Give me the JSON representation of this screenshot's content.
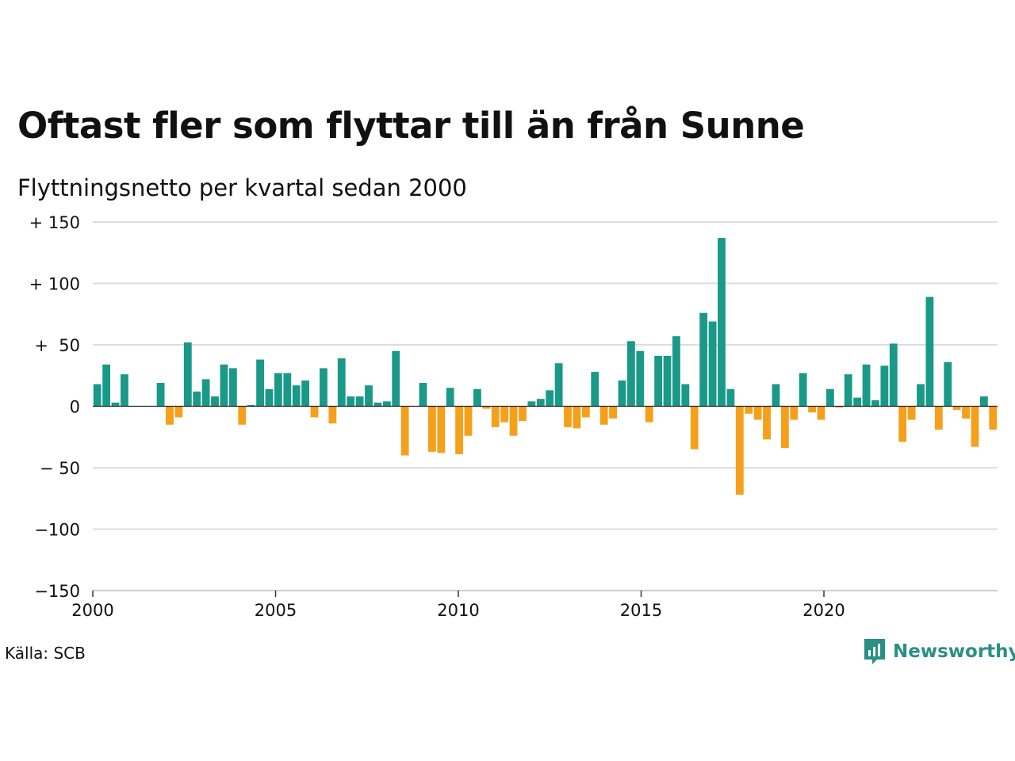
{
  "colors": {
    "positive": "#1a9988",
    "negative": "#f5a01a",
    "grid": "#dddddd",
    "logo": "#2a8f85"
  },
  "source": "Källa: SCB",
  "logo": {
    "text": "Newsworthy",
    "icon": "chart-bubble-icon"
  },
  "chart_data": {
    "type": "bar",
    "title": "Oftast fler som flyttar till än från Sunne",
    "subtitle": "Flyttningsnetto per kvartal sedan 2000",
    "xlabel": "",
    "ylabel": "",
    "ylim": [
      -150,
      150
    ],
    "xlim": [
      2000,
      2024.75
    ],
    "grid": true,
    "legend": "none",
    "y_ticks": [
      {
        "value": 150,
        "label": "+ 150"
      },
      {
        "value": 100,
        "label": "+ 100"
      },
      {
        "value": 50,
        "label": "+  50"
      },
      {
        "value": 0,
        "label": "0"
      },
      {
        "value": -50,
        "label": "− 50"
      },
      {
        "value": -100,
        "label": "−100"
      },
      {
        "value": -150,
        "label": "−150"
      }
    ],
    "x_ticks": [
      {
        "value": 2000,
        "label": "2000"
      },
      {
        "value": 2005,
        "label": "2005"
      },
      {
        "value": 2010,
        "label": "2010"
      },
      {
        "value": 2015,
        "label": "2015"
      },
      {
        "value": 2020,
        "label": "2020"
      }
    ],
    "categories": [
      "2000K1",
      "2000K2",
      "2000K3",
      "2000K4",
      "2001K1",
      "2001K2",
      "2001K3",
      "2001K4",
      "2002K1",
      "2002K2",
      "2002K3",
      "2002K4",
      "2003K1",
      "2003K2",
      "2003K3",
      "2003K4",
      "2004K1",
      "2004K2",
      "2004K3",
      "2004K4",
      "2005K1",
      "2005K2",
      "2005K3",
      "2005K4",
      "2006K1",
      "2006K2",
      "2006K3",
      "2006K4",
      "2007K1",
      "2007K2",
      "2007K3",
      "2007K4",
      "2008K1",
      "2008K2",
      "2008K3",
      "2008K4",
      "2009K1",
      "2009K2",
      "2009K3",
      "2009K4",
      "2010K1",
      "2010K2",
      "2010K3",
      "2010K4",
      "2011K1",
      "2011K2",
      "2011K3",
      "2011K4",
      "2012K1",
      "2012K2",
      "2012K3",
      "2012K4",
      "2013K1",
      "2013K2",
      "2013K3",
      "2013K4",
      "2014K1",
      "2014K2",
      "2014K3",
      "2014K4",
      "2015K1",
      "2015K2",
      "2015K3",
      "2015K4",
      "2016K1",
      "2016K2",
      "2016K3",
      "2016K4",
      "2017K1",
      "2017K2",
      "2017K3",
      "2017K4",
      "2018K1",
      "2018K2",
      "2018K3",
      "2018K4",
      "2019K1",
      "2019K2",
      "2019K3",
      "2019K4",
      "2020K1",
      "2020K2",
      "2020K3",
      "2020K4",
      "2021K1",
      "2021K2",
      "2021K3",
      "2021K4",
      "2022K1",
      "2022K2",
      "2022K3",
      "2022K4",
      "2023K1",
      "2023K2",
      "2023K3",
      "2023K4",
      "2024K1",
      "2024K2",
      "2024K3",
      "2024K4"
    ],
    "values": [
      18,
      34,
      3,
      26,
      0,
      0,
      0,
      19,
      -15,
      -9,
      52,
      12,
      22,
      8,
      34,
      31,
      -15,
      1,
      38,
      14,
      27,
      27,
      17,
      21,
      -9,
      31,
      -14,
      39,
      8,
      8,
      17,
      3,
      4,
      45,
      -40,
      0,
      19,
      -37,
      -38,
      15,
      -39,
      -24,
      14,
      -2,
      -17,
      -13,
      -24,
      -12,
      4,
      6,
      13,
      35,
      -17,
      -18,
      -9,
      28,
      -15,
      -10,
      21,
      53,
      45,
      -13,
      41,
      41,
      57,
      18,
      -35,
      76,
      69,
      137,
      14,
      -72,
      -6,
      -11,
      -27,
      18,
      -34,
      -11,
      27,
      -5,
      -11,
      14,
      -1,
      26,
      7,
      34,
      5,
      33,
      51,
      -29,
      -11,
      18,
      89,
      -19,
      36,
      -3,
      -10,
      -33,
      8,
      -19
    ]
  }
}
